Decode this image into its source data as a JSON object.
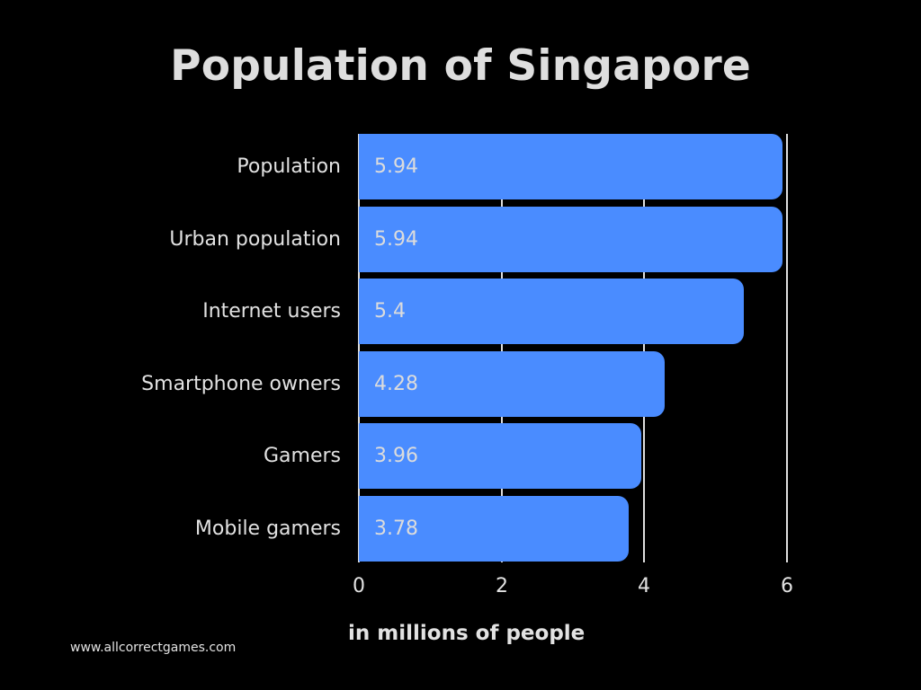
{
  "chart_data": {
    "type": "bar",
    "orientation": "horizontal",
    "title": "Population of Singapore",
    "xlabel": "in millions of people",
    "ylabel": "",
    "categories": [
      "Population",
      "Urban population",
      "Internet users",
      "Smartphone owners",
      "Gamers",
      "Mobile gamers"
    ],
    "values": [
      5.94,
      5.94,
      5.4,
      4.28,
      3.96,
      3.78
    ],
    "value_labels": [
      "5.94",
      "5.94",
      "5.4",
      "4.28",
      "3.96",
      "3.78"
    ],
    "xlim": [
      0,
      6
    ],
    "xticks": [
      "0",
      "2",
      "4",
      "6"
    ],
    "grid": true,
    "legend": null,
    "bar_color": "#4a8cff",
    "background": "#000000"
  },
  "header": {
    "title": "Population of Singapore"
  },
  "axis": {
    "xlabel": "in millions of people",
    "ticks": [
      {
        "label": "0",
        "value": 0
      },
      {
        "label": "2",
        "value": 2
      },
      {
        "label": "4",
        "value": 4
      },
      {
        "label": "6",
        "value": 6
      }
    ]
  },
  "bars": [
    {
      "label": "Population",
      "value": 5.94,
      "value_label": "5.94"
    },
    {
      "label": "Urban population",
      "value": 5.94,
      "value_label": "5.94"
    },
    {
      "label": "Internet users",
      "value": 5.4,
      "value_label": "5.4"
    },
    {
      "label": "Smartphone owners",
      "value": 4.28,
      "value_label": "4.28"
    },
    {
      "label": "Gamers",
      "value": 3.96,
      "value_label": "3.96"
    },
    {
      "label": "Mobile gamers",
      "value": 3.78,
      "value_label": "3.78"
    }
  ],
  "footer": {
    "source": "www.allcorrectgames.com"
  }
}
